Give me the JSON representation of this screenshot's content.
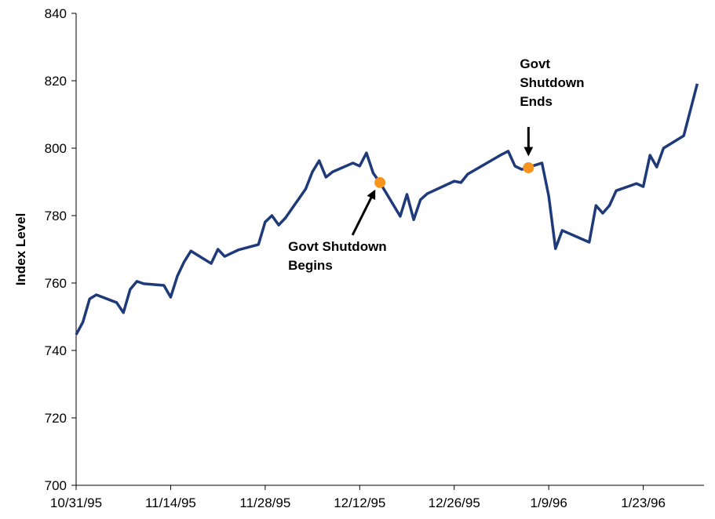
{
  "chart_data": {
    "type": "line",
    "y_label": "Index Level",
    "x": [
      "10/31/95",
      "11/1/95",
      "11/2/95",
      "11/3/95",
      "11/6/95",
      "11/7/95",
      "11/8/95",
      "11/9/95",
      "11/10/95",
      "11/13/95",
      "11/14/95",
      "11/15/95",
      "11/16/95",
      "11/17/95",
      "11/20/95",
      "11/21/95",
      "11/22/95",
      "11/24/95",
      "11/27/95",
      "11/28/95",
      "11/29/95",
      "11/30/95",
      "12/1/95",
      "12/4/95",
      "12/5/95",
      "12/6/95",
      "12/7/95",
      "12/8/95",
      "12/11/95",
      "12/12/95",
      "12/13/95",
      "12/14/95",
      "12/15/95",
      "12/18/95",
      "12/19/95",
      "12/20/95",
      "12/21/95",
      "12/22/95",
      "12/26/95",
      "12/27/95",
      "12/28/95",
      "1/2/96",
      "1/3/96",
      "1/4/96",
      "1/5/96",
      "1/8/96",
      "1/9/96",
      "1/10/96",
      "1/11/96",
      "1/15/96",
      "1/16/96",
      "1/17/96",
      "1/18/96",
      "1/19/96",
      "1/22/96",
      "1/23/96",
      "1/24/96",
      "1/25/96",
      "1/26/96",
      "1/29/96",
      "1/30/96",
      "1/31/96"
    ],
    "series": [
      {
        "name": "Index",
        "color": "#1f3a7a",
        "values": [
          744.7,
          748.4,
          755.3,
          756.5,
          754.2,
          751.2,
          758.1,
          760.5,
          759.8,
          759.3,
          755.8,
          762.1,
          766.3,
          769.5,
          765.8,
          770.0,
          767.9,
          769.8,
          771.4,
          778.1,
          780.0,
          777.2,
          779.3,
          787.9,
          793.0,
          796.3,
          791.4,
          793.0,
          795.6,
          794.7,
          798.6,
          792.6,
          789.8,
          779.8,
          786.3,
          778.8,
          784.7,
          786.5,
          790.2,
          789.8,
          792.3,
          798.1,
          799.1,
          794.7,
          793.7,
          795.6,
          785.8,
          770.2,
          775.6,
          772.1,
          783.0,
          780.7,
          783.0,
          787.4,
          789.5,
          788.6,
          797.9,
          794.4,
          800.0,
          803.7,
          811.4,
          819.1
        ]
      }
    ],
    "annotations": [
      {
        "lines": [
          "Govt Shutdown",
          "Begins"
        ],
        "x": "12/15/95",
        "y": 789.8,
        "color": "#f7941d"
      },
      {
        "lines": [
          "Govt",
          "Shutdown",
          "Ends"
        ],
        "x": "1/6/96",
        "y": 794.2,
        "color": "#f7941d"
      }
    ],
    "xlim": [
      "10/31/95",
      "2/1/96"
    ],
    "xticks": [
      "10/31/95",
      "11/14/95",
      "11/28/95",
      "12/12/95",
      "12/26/95",
      "1/9/96",
      "1/23/96"
    ],
    "ylim": [
      700,
      840
    ],
    "yticks": [
      700,
      720,
      740,
      760,
      780,
      800,
      820,
      840
    ],
    "grid": false
  }
}
